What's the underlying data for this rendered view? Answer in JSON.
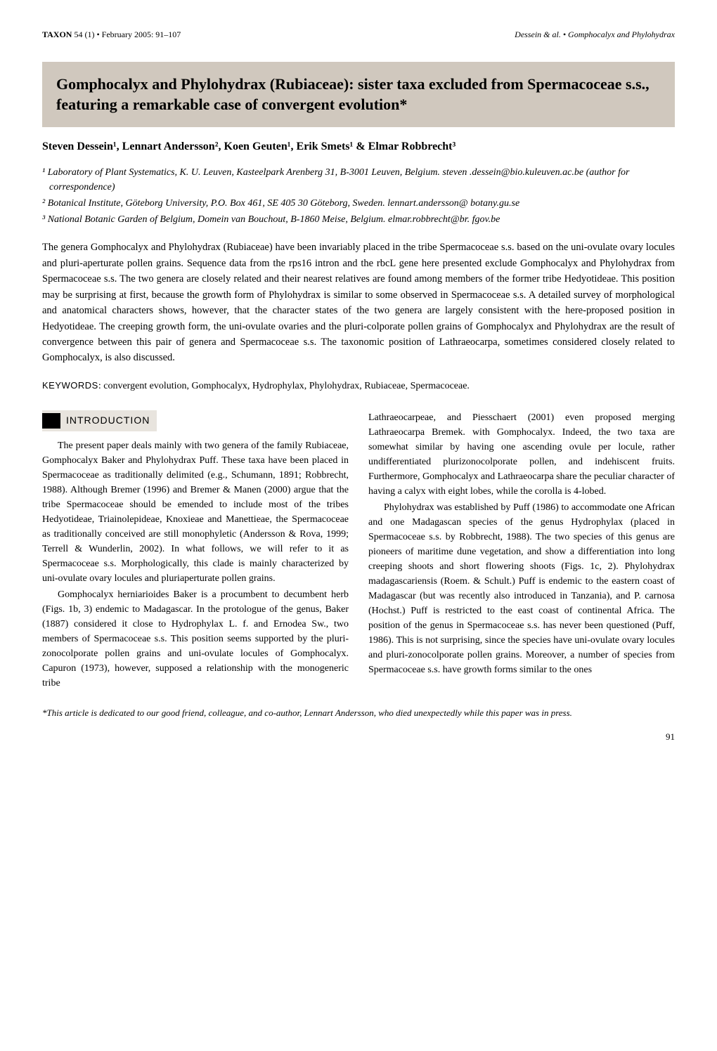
{
  "header": {
    "left_journal": "TAXON",
    "left_issue": " 54 (1) • February 2005: 91–107",
    "right": "Dessein & al. • Gomphocalyx and Phylohydrax"
  },
  "title": "Gomphocalyx and Phylohydrax (Rubiaceae): sister taxa excluded from Spermacoceae s.s., featuring a remarkable case of convergent evolution*",
  "authors": "Steven Dessein¹, Lennart Andersson², Koen Geuten¹, Erik Smets¹ & Elmar Robbrecht³",
  "affiliations": [
    "¹ Laboratory of Plant Systematics, K. U. Leuven, Kasteelpark Arenberg 31, B-3001 Leuven, Belgium. steven .dessein@bio.kuleuven.ac.be (author for correspondence)",
    "² Botanical Institute, Göteborg University, P.O. Box 461, SE 405 30 Göteborg, Sweden. lennart.andersson@ botany.gu.se",
    "³ National Botanic Garden of Belgium, Domein van Bouchout, B-1860 Meise, Belgium. elmar.robbrecht@br. fgov.be"
  ],
  "abstract": "The genera Gomphocalyx and Phylohydrax (Rubiaceae) have been invariably placed in the tribe Spermacoceae s.s. based on the uni-ovulate ovary locules and pluri-aperturate pollen grains. Sequence data from the rps16 intron and the rbcL gene here presented exclude Gomphocalyx and Phylohydrax from Spermacoceae s.s. The two genera are closely related and their nearest relatives are found among members of the former tribe Hedyotideae. This position may be surprising at first, because the growth form of Phylohydrax is similar to some observed in Spermacoceae s.s. A detailed survey of morphological and anatomical characters shows, however, that the character states of the two genera are largely consistent with the here-proposed position in Hedyotideae. The creeping growth form, the uni-ovulate ovaries and the pluri-colporate pollen grains of Gomphocalyx and Phylohydrax are the result of convergence between this pair of genera and Spermacoceae s.s. The taxonomic position of Lathraeocarpa, sometimes considered closely related to Gomphocalyx, is also discussed.",
  "keywords_label": "KEYWORDS",
  "keywords": ": convergent evolution, Gomphocalyx, Hydrophylax, Phylohydrax, Rubiaceae, Spermacoceae.",
  "section_heading": "INTRODUCTION",
  "body": {
    "left": [
      "The present paper deals mainly with two genera of the family Rubiaceae, Gomphocalyx Baker and Phylohydrax Puff. These taxa have been placed in Spermacoceae as traditionally delimited (e.g., Schumann, 1891; Robbrecht, 1988). Although Bremer (1996) and Bremer & Manen (2000) argue that the tribe Spermacoceae should be emended to include most of the tribes Hedyotideae, Triainolepideae, Knoxieae and Manettieae, the Spermacoceae as traditionally conceived are still monophyletic (Andersson & Rova, 1999; Terrell & Wunderlin, 2002). In what follows, we will refer to it as Spermacoceae s.s. Morphologically, this clade is mainly characterized by uni-ovulate ovary locules and pluriaperturate pollen grains.",
      "Gomphocalyx herniarioides Baker is a procumbent to decumbent herb (Figs. 1b, 3) endemic to Madagascar. In the protologue of the genus, Baker (1887) considered it close to Hydrophylax L. f. and Ernodea Sw., two members of Spermacoceae s.s. This position seems supported by the pluri-zonocolporate pollen grains and uni-ovulate locules of Gomphocalyx. Capuron (1973), however, supposed a relationship with the monogeneric tribe"
    ],
    "right": [
      "Lathraeocarpeae, and Piesschaert (2001) even proposed merging Lathraeocarpa Bremek. with Gomphocalyx. Indeed, the two taxa are somewhat similar by having one ascending ovule per locule, rather undifferentiated plurizonocolporate pollen, and indehiscent fruits. Furthermore, Gomphocalyx and Lathraeocarpa share the peculiar character of having a calyx with eight lobes, while the corolla is 4-lobed.",
      "Phylohydrax was established by Puff (1986) to accommodate one African and one Madagascan species of the genus Hydrophylax (placed in Spermacoceae s.s. by Robbrecht, 1988). The two species of this genus are pioneers of maritime dune vegetation, and show a differentiation into long creeping shoots and short flowering shoots (Figs. 1c, 2). Phylohydrax madagascariensis (Roem. & Schult.) Puff is endemic to the eastern coast of Madagascar (but was recently also introduced in Tanzania), and P. carnosa (Hochst.) Puff is restricted to the east coast of continental Africa. The position of the genus in Spermacoceae s.s. has never been questioned (Puff, 1986). This is not surprising, since the species have uni-ovulate ovary locules and pluri-zonocolporate pollen grains. Moreover, a number of species from Spermacoceae s.s. have growth forms similar to the ones"
    ]
  },
  "footnote": "*This article is dedicated to our good friend, colleague, and co-author, Lennart Andersson, who died unexpectedly while this paper was in press.",
  "page_number": "91",
  "colors": {
    "banner_bg": "#d0c8be",
    "heading_bg": "#e8e4de",
    "text": "#000000",
    "page_bg": "#ffffff"
  },
  "typography": {
    "body_fontsize": 14,
    "title_fontsize": 22,
    "authors_fontsize": 16,
    "header_fontsize": 12
  }
}
